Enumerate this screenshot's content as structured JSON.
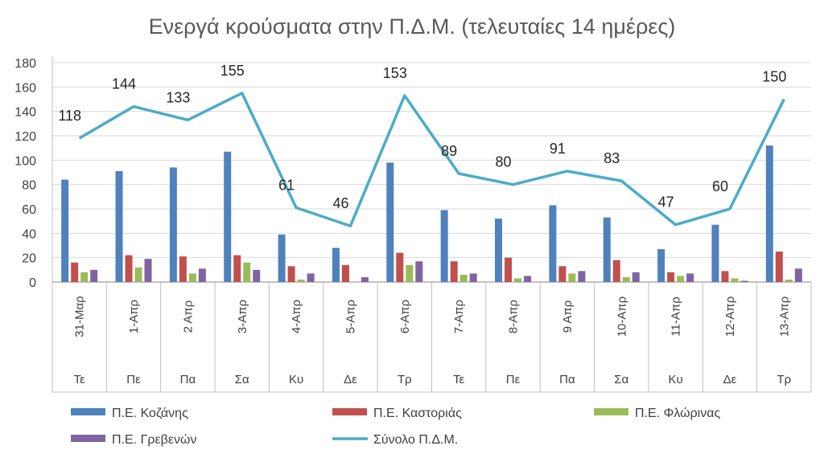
{
  "chart_data": {
    "type": "bar",
    "title": "Ενεργά κρούσματα στην Π.Δ.Μ. (τελευταίες 14 ημέρες)",
    "xlabel": "",
    "ylabel": "",
    "ylim": [
      0,
      180
    ],
    "yticks": [
      "0",
      "20",
      "40",
      "60",
      "80",
      "100",
      "120",
      "140",
      "160",
      "180"
    ],
    "categories": [
      "31-Μαρ",
      "1-Απρ",
      "2 Απρ",
      "3-Απρ",
      "4-Απρ",
      "5-Απρ",
      "6-Απρ",
      "7-Απρ",
      "8-Απρ",
      "9 Απρ",
      "10-Απρ",
      "11-Απρ",
      "12-Απρ",
      "13-Απρ"
    ],
    "days": [
      "Τε",
      "Πε",
      "Πα",
      "Σα",
      "Κυ",
      "Δε",
      "Τρ",
      "Τε",
      "Πε",
      "Πα",
      "Σα",
      "Κυ",
      "Δε",
      "Τρ"
    ],
    "grid": true,
    "legend_position": "bottom",
    "series": [
      {
        "name": "Π.Ε. Κοζάνης",
        "kind": "bar",
        "color": "#4F81BD",
        "values": [
          84,
          91,
          94,
          107,
          39,
          28,
          98,
          59,
          52,
          63,
          53,
          27,
          47,
          112
        ]
      },
      {
        "name": "Π.Ε. Καστοριάς",
        "kind": "bar",
        "color": "#C0504D",
        "values": [
          16,
          22,
          21,
          22,
          13,
          14,
          24,
          17,
          20,
          13,
          18,
          8,
          9,
          25
        ]
      },
      {
        "name": "Π.Ε. Φλώρινας",
        "kind": "bar",
        "color": "#9BBB59",
        "values": [
          8,
          12,
          7,
          16,
          2,
          0,
          14,
          6,
          3,
          7,
          4,
          5,
          3,
          2
        ]
      },
      {
        "name": "Π.Ε. Γρεβενών",
        "kind": "bar",
        "color": "#8064A2",
        "values": [
          10,
          19,
          11,
          10,
          7,
          4,
          17,
          7,
          5,
          9,
          8,
          7,
          1,
          11
        ]
      },
      {
        "name": "Σύνολο Π.Δ.Μ.",
        "kind": "line",
        "color": "#4BACC6",
        "values": [
          118,
          144,
          133,
          155,
          61,
          46,
          153,
          89,
          80,
          91,
          83,
          47,
          60,
          150
        ],
        "data_labels": [
          "118",
          "144",
          "133",
          "155",
          "61",
          "46",
          "153",
          "89",
          "80",
          "91",
          "83",
          "47",
          "60",
          "150"
        ]
      }
    ]
  }
}
